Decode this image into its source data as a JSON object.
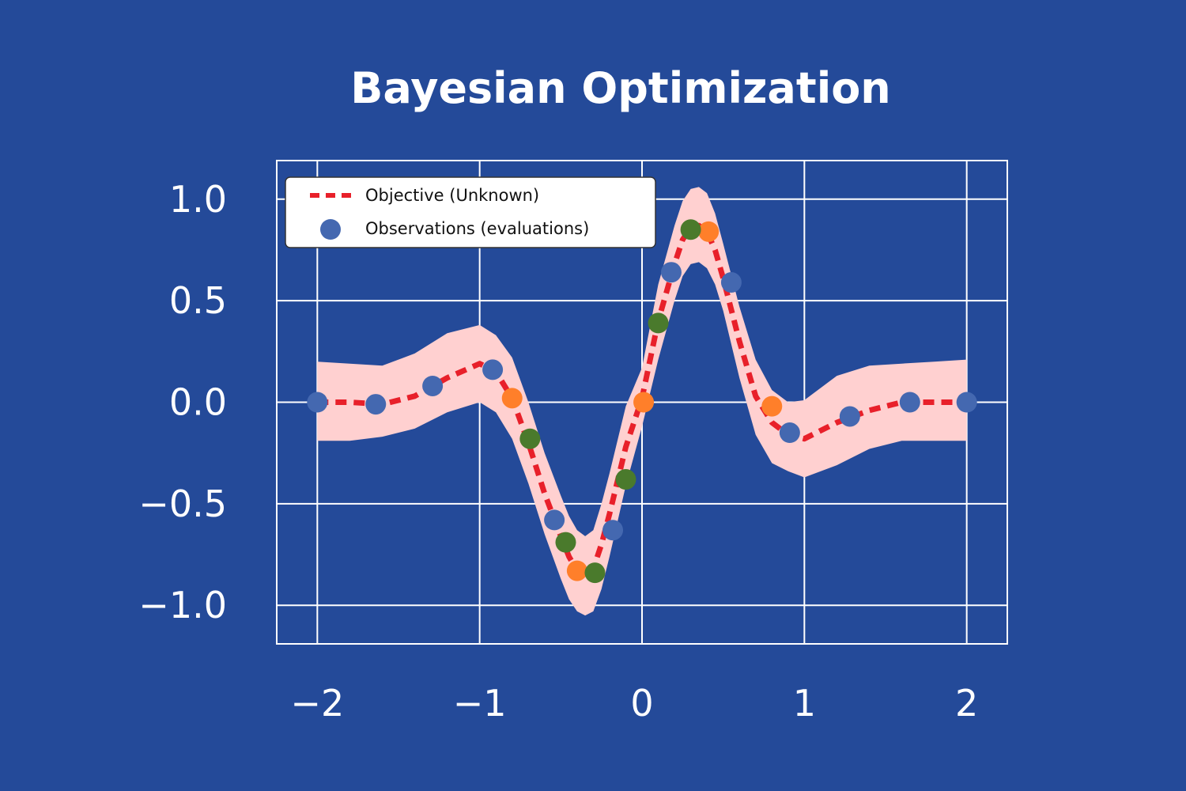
{
  "chart_data": {
    "type": "line",
    "title": "Bayesian Optimization",
    "xlabel": "",
    "ylabel": "",
    "xlim": [
      -2.25,
      2.25
    ],
    "ylim": [
      -1.19,
      1.19
    ],
    "xticks": [
      -2,
      -1,
      0,
      1,
      2
    ],
    "xtick_labels": [
      "−2",
      "−1",
      "0",
      "1",
      "2"
    ],
    "yticks": [
      -1.0,
      -0.5,
      0.0,
      0.5,
      1.0
    ],
    "ytick_labels": [
      "−1.0",
      "−0.5",
      "0.0",
      "0.5",
      "1.0"
    ],
    "grid": true,
    "legend_position": "top-left",
    "colors": {
      "background": "#244a99",
      "objective": "#e8202a",
      "band": "#ffd0d0",
      "grid": "#ffffff",
      "obs_blue": "#4468b0",
      "obs_orange": "#ff7f2a",
      "obs_green": "#4a7a2c"
    },
    "objective": {
      "name": "Objective (Unknown)",
      "x": [
        -2.0,
        -1.8,
        -1.6,
        -1.4,
        -1.2,
        -1.0,
        -0.9,
        -0.8,
        -0.7,
        -0.6,
        -0.5,
        -0.45,
        -0.4,
        -0.35,
        -0.3,
        -0.25,
        -0.2,
        -0.1,
        0.0,
        0.1,
        0.2,
        0.25,
        0.3,
        0.35,
        0.4,
        0.45,
        0.5,
        0.6,
        0.7,
        0.8,
        0.9,
        1.0,
        1.2,
        1.4,
        1.6,
        1.8,
        2.0
      ],
      "y": [
        0.0,
        0.0,
        -0.01,
        0.03,
        0.12,
        0.19,
        0.15,
        0.02,
        -0.2,
        -0.45,
        -0.66,
        -0.76,
        -0.83,
        -0.85,
        -0.82,
        -0.7,
        -0.55,
        -0.22,
        0.02,
        0.4,
        0.68,
        0.8,
        0.86,
        0.87,
        0.84,
        0.75,
        0.61,
        0.3,
        0.03,
        -0.1,
        -0.16,
        -0.18,
        -0.1,
        -0.04,
        0.0,
        0.0,
        0.0
      ]
    },
    "uncertainty_band": {
      "x": [
        -2.0,
        -1.8,
        -1.6,
        -1.4,
        -1.2,
        -1.0,
        -0.9,
        -0.8,
        -0.7,
        -0.6,
        -0.5,
        -0.45,
        -0.4,
        -0.35,
        -0.3,
        -0.25,
        -0.2,
        -0.1,
        0.0,
        0.1,
        0.2,
        0.25,
        0.3,
        0.35,
        0.4,
        0.45,
        0.5,
        0.6,
        0.7,
        0.8,
        0.9,
        1.0,
        1.2,
        1.4,
        1.6,
        1.8,
        2.0
      ],
      "lower": [
        -0.19,
        -0.19,
        -0.17,
        -0.13,
        -0.05,
        0.0,
        -0.05,
        -0.18,
        -0.4,
        -0.65,
        -0.87,
        -0.97,
        -1.03,
        -1.05,
        -1.03,
        -0.92,
        -0.76,
        -0.41,
        -0.12,
        0.21,
        0.5,
        0.62,
        0.68,
        0.69,
        0.66,
        0.58,
        0.45,
        0.12,
        -0.16,
        -0.3,
        -0.34,
        -0.37,
        -0.31,
        -0.23,
        -0.19,
        -0.19,
        -0.19
      ],
      "upper": [
        0.2,
        0.19,
        0.18,
        0.24,
        0.34,
        0.38,
        0.33,
        0.22,
        0.0,
        -0.25,
        -0.46,
        -0.56,
        -0.63,
        -0.66,
        -0.63,
        -0.5,
        -0.35,
        -0.02,
        0.17,
        0.58,
        0.87,
        0.99,
        1.05,
        1.06,
        1.03,
        0.93,
        0.78,
        0.47,
        0.21,
        0.06,
        0.0,
        0.01,
        0.13,
        0.18,
        0.19,
        0.2,
        0.21
      ]
    },
    "observations": {
      "name": "Observations (evaluations)",
      "blue": [
        [
          -2.0,
          0.0
        ],
        [
          -1.64,
          -0.01
        ],
        [
          -1.29,
          0.08
        ],
        [
          -0.92,
          0.16
        ],
        [
          -0.54,
          -0.58
        ],
        [
          -0.18,
          -0.63
        ],
        [
          0.18,
          0.64
        ],
        [
          0.55,
          0.59
        ],
        [
          0.91,
          -0.15
        ],
        [
          1.28,
          -0.07
        ],
        [
          1.65,
          0.0
        ],
        [
          2.0,
          0.0
        ]
      ],
      "orange": [
        [
          -0.8,
          0.02
        ],
        [
          -0.4,
          -0.83
        ],
        [
          0.01,
          0.0
        ],
        [
          0.41,
          0.84
        ],
        [
          0.8,
          -0.02
        ]
      ],
      "green": [
        [
          -0.69,
          -0.18
        ],
        [
          -0.47,
          -0.69
        ],
        [
          -0.29,
          -0.84
        ],
        [
          -0.1,
          -0.38
        ],
        [
          0.1,
          0.39
        ],
        [
          0.3,
          0.85
        ]
      ]
    }
  }
}
